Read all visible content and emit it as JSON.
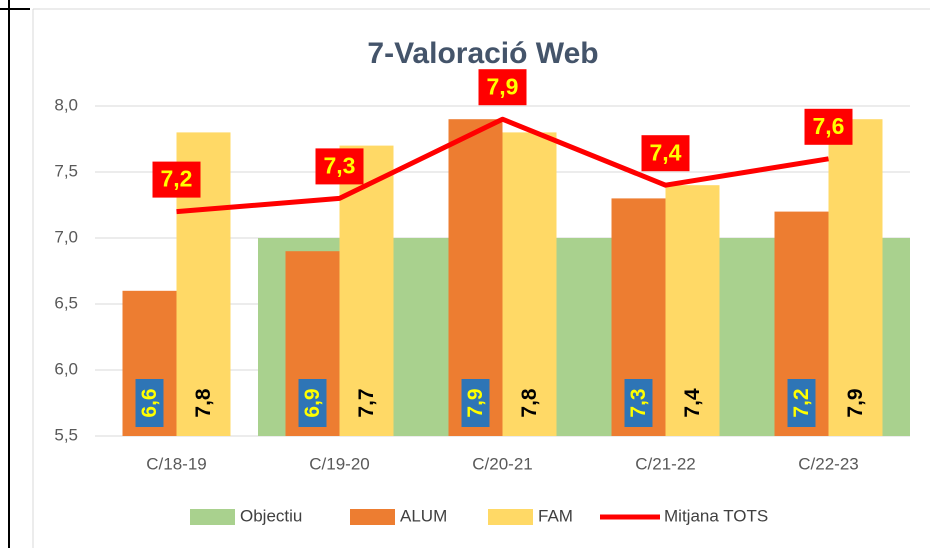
{
  "chart_data": {
    "type": "bar",
    "title": "7-Valoració Web",
    "categories": [
      "C/18-19",
      "C/19-20",
      "C/20-21",
      "C/21-22",
      "C/22-23"
    ],
    "ylim": [
      5.5,
      8.0
    ],
    "yticks": [
      {
        "value": 5.5,
        "label": "5,5"
      },
      {
        "value": 6.0,
        "label": "6,0"
      },
      {
        "value": 6.5,
        "label": "6,5"
      },
      {
        "value": 7.0,
        "label": "7,0"
      },
      {
        "value": 7.5,
        "label": "7,5"
      },
      {
        "value": 8.0,
        "label": "8,0"
      }
    ],
    "grid": true,
    "legend": "bottom",
    "series": [
      {
        "name": "Objectiu",
        "type": "bar",
        "color": "#a9d18e",
        "values": [
          null,
          7.0,
          7.0,
          7.0,
          7.0
        ]
      },
      {
        "name": "ALUM",
        "type": "bar",
        "color": "#ed7d31",
        "values": [
          6.6,
          6.9,
          7.9,
          7.3,
          7.2
        ],
        "value_labels": [
          "6,6",
          "6,9",
          "7,9",
          "7,3",
          "7,2"
        ]
      },
      {
        "name": "FAM",
        "type": "bar",
        "color": "#ffd966",
        "values": [
          7.8,
          7.7,
          7.8,
          7.4,
          7.9
        ],
        "value_labels": [
          "7,8",
          "7,7",
          "7,8",
          "7,4",
          "7,9"
        ]
      },
      {
        "name": "Mitjana TOTS",
        "type": "line",
        "color": "#ff0000",
        "values": [
          7.2,
          7.3,
          7.9,
          7.4,
          7.6
        ],
        "value_labels": [
          "7,2",
          "7,3",
          "7,9",
          "7,4",
          "7,6"
        ]
      }
    ]
  }
}
